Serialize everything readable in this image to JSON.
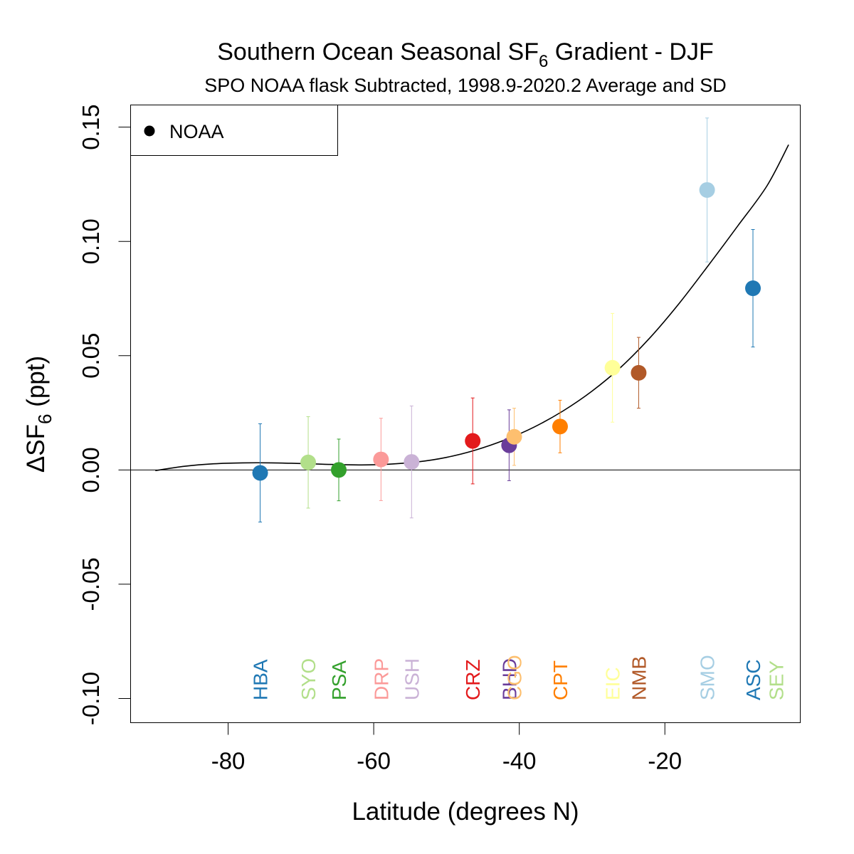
{
  "chart_data": {
    "type": "scatter",
    "title_main": "Southern Ocean Seasonal SF",
    "title_sub_script": "6",
    "title_tail": " Gradient - DJF",
    "subtitle": "SPO NOAA flask Subtracted, 1998.9-2020.2 Average and SD",
    "xlabel": "Latitude (degrees N)",
    "ylabel_main": "ΔSF",
    "ylabel_sub_script": "6",
    "ylabel_tail": " (ppt)",
    "xlim": [
      -93.4,
      -1.4
    ],
    "ylim": [
      -0.1106,
      0.1597
    ],
    "x_ticks": [
      -80,
      -60,
      -40,
      -20
    ],
    "x_tick_labels": [
      "-80",
      "-60",
      "-40",
      "-20"
    ],
    "y_ticks": [
      -0.1,
      -0.05,
      0.0,
      0.05,
      0.1,
      0.15
    ],
    "y_tick_labels": [
      "-0.10",
      "-0.05",
      "0.00",
      "0.05",
      "0.10",
      "0.15"
    ],
    "zero_line": 0,
    "legend": {
      "position": "top-left",
      "label": "NOAA"
    },
    "fit_curve": {
      "x": [
        -90,
        -86,
        -82,
        -78,
        -74,
        -70,
        -66,
        -62,
        -58,
        -54,
        -50,
        -46,
        -42,
        -38,
        -34,
        -30,
        -26,
        -22,
        -18,
        -14,
        -10,
        -6,
        -3
      ],
      "y": [
        -0.0003,
        0.0016,
        0.0027,
        0.0031,
        0.0031,
        0.0028,
        0.0024,
        0.0022,
        0.0025,
        0.0035,
        0.0055,
        0.0087,
        0.0131,
        0.0187,
        0.0258,
        0.0345,
        0.0451,
        0.058,
        0.073,
        0.0896,
        0.1067,
        0.1242,
        0.1423
      ]
    },
    "points": [
      {
        "label": "HBA",
        "x": -75.6,
        "y": -0.0013,
        "sd": 0.0215,
        "color": "#1f78b4"
      },
      {
        "label": "SYO",
        "x": -69.0,
        "y": 0.0033,
        "sd": 0.02,
        "color": "#b2df8a"
      },
      {
        "label": "PSA",
        "x": -64.8,
        "y": 0.0,
        "sd": 0.0135,
        "color": "#33a02c"
      },
      {
        "label": "DRP",
        "x": -59.0,
        "y": 0.0046,
        "sd": 0.018,
        "color": "#fb9a99"
      },
      {
        "label": "USH",
        "x": -54.8,
        "y": 0.0035,
        "sd": 0.0245,
        "color": "#cab2d6"
      },
      {
        "label": "CRZ",
        "x": -46.4,
        "y": 0.0127,
        "sd": 0.0188,
        "color": "#e31a1c"
      },
      {
        "label": "BHD",
        "x": -41.4,
        "y": 0.0108,
        "sd": 0.0155,
        "color": "#6a3d9a"
      },
      {
        "label": "CGO",
        "x": -40.7,
        "y": 0.0145,
        "sd": 0.0125,
        "color": "#fdbf6f"
      },
      {
        "label": "CPT",
        "x": -34.4,
        "y": 0.019,
        "sd": 0.0115,
        "color": "#ff7f00"
      },
      {
        "label": "EIC",
        "x": -27.2,
        "y": 0.0447,
        "sd": 0.0238,
        "color": "#ffff99"
      },
      {
        "label": "NMB",
        "x": -23.6,
        "y": 0.0425,
        "sd": 0.0155,
        "color": "#b15928"
      },
      {
        "label": "SMO",
        "x": -14.2,
        "y": 0.1225,
        "sd": 0.0315,
        "color": "#a6cee3"
      },
      {
        "label": "ASC",
        "x": -7.9,
        "y": 0.0795,
        "sd": 0.0257,
        "color": "#1f78b4"
      },
      {
        "label": "SEY",
        "x": -4.7,
        "y": null,
        "sd": null,
        "color": "#b2df8a"
      }
    ]
  }
}
